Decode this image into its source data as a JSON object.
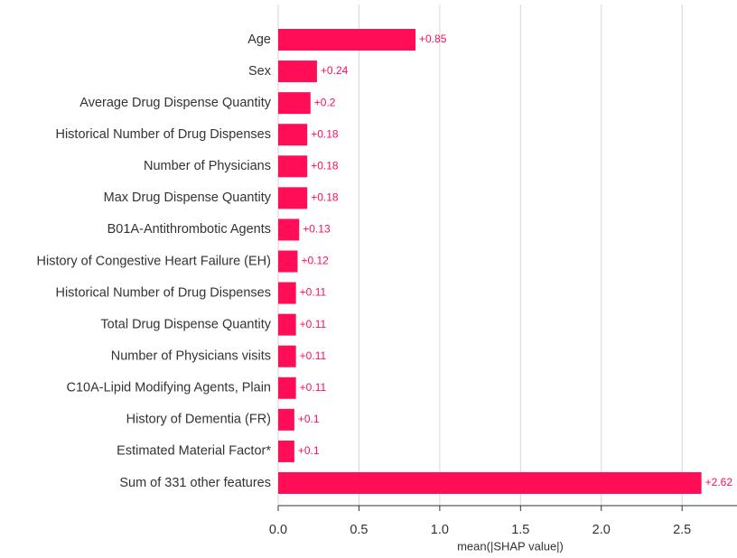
{
  "chart_data": {
    "type": "bar",
    "orientation": "horizontal",
    "x_label": "mean(|SHAP value|)",
    "categories": [
      "Age",
      "Sex",
      "Average Drug Dispense Quantity",
      "Historical Number of Drug Dispenses",
      "Number of Physicians",
      "Max Drug Dispense Quantity",
      "B01A-Antithrombotic Agents",
      "History of Congestive Heart Failure (EH)",
      "Historical Number of Drug Dispenses",
      "Total Drug Dispense Quantity",
      "Number of Physicians visits",
      "C10A-Lipid Modifying Agents, Plain",
      "History of Dementia (FR)",
      "Estimated Material Factor*",
      "Sum of 331 other features"
    ],
    "values": [
      0.85,
      0.24,
      0.2,
      0.18,
      0.18,
      0.18,
      0.13,
      0.12,
      0.11,
      0.11,
      0.11,
      0.11,
      0.1,
      0.1,
      2.62
    ],
    "value_labels": [
      "+0.85",
      "+0.24",
      "+0.2",
      "+0.18",
      "+0.18",
      "+0.18",
      "+0.13",
      "+0.12",
      "+0.11",
      "+0.11",
      "+0.11",
      "+0.11",
      "+0.1",
      "+0.1",
      "+2.62"
    ],
    "color": "#ff0d57",
    "xlim": [
      0,
      2.84
    ],
    "xticks": [
      {
        "value": 0,
        "label": "0.0"
      },
      0.5,
      {
        "value": 1,
        "label": "1.0"
      },
      1.5,
      {
        "value": 2,
        "label": "2.0"
      },
      2.5
    ],
    "grid": true
  }
}
